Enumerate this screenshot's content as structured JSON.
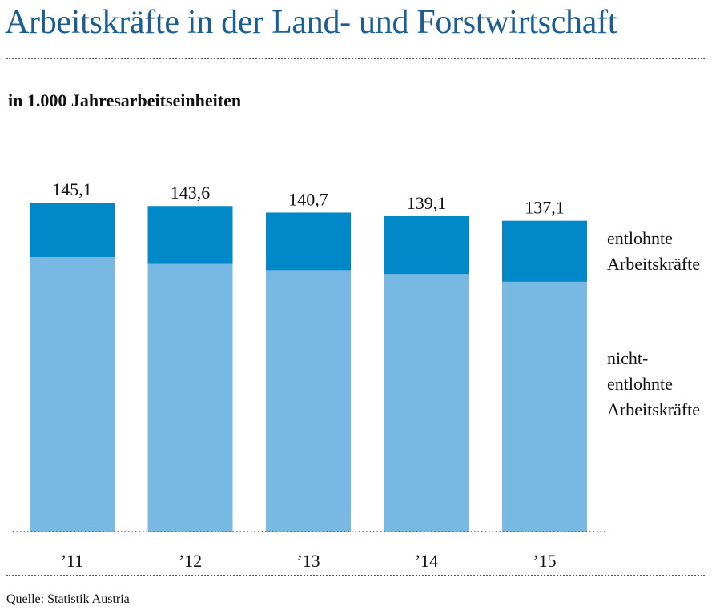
{
  "title": "Arbeitskräfte in der Land- und Forstwirtschaft",
  "subtitle": "in 1.000 Jahresarbeitseinheiten",
  "source": "Quelle: Statistik Austria",
  "colors": {
    "title": "#1a5e92",
    "entlohnt": "#0088c8",
    "nicht_entlohnt": "#78b9e3"
  },
  "legend": {
    "entlohnt": [
      "entlohnte",
      "Arbeitskräfte"
    ],
    "nicht_entlohnt": [
      "nicht-",
      "entlohnte",
      "Arbeitskräfte"
    ]
  },
  "chart_data": {
    "type": "bar",
    "stacked": true,
    "title": "Arbeitskräfte in der Land- und Forstwirtschaft",
    "subtitle": "in 1.000 Jahresarbeitseinheiten",
    "categories": [
      "’11",
      "’12",
      "’13",
      "’14",
      "’15"
    ],
    "totals": [
      "145,1",
      "143,6",
      "140,7",
      "139,1",
      "137,1"
    ],
    "total_values": [
      145.1,
      143.6,
      140.7,
      139.1,
      137.1
    ],
    "series": [
      {
        "name": "nicht-entlohnte Arbeitskräfte",
        "values": [
          121.1,
          118.1,
          115.3,
          113.6,
          110.2
        ]
      },
      {
        "name": "entlohnte Arbeitskräfte",
        "values": [
          24.0,
          25.5,
          25.4,
          25.5,
          26.9
        ]
      }
    ],
    "ylim": [
      0,
      145.1
    ],
    "grid": false,
    "legend_position": "right"
  }
}
